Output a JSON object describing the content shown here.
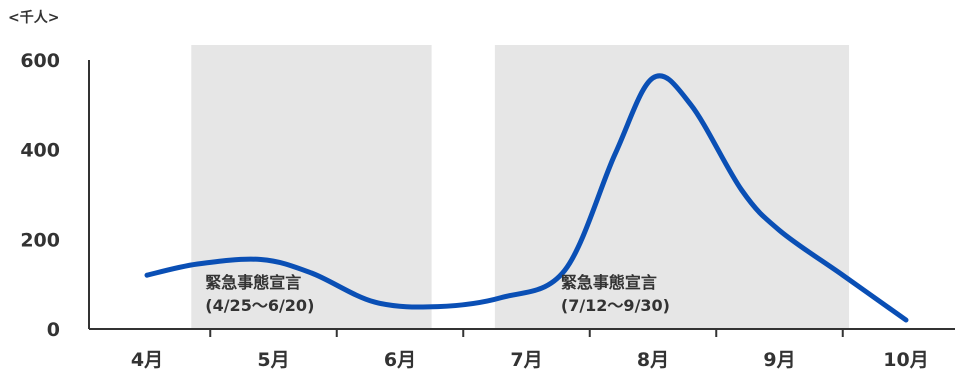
{
  "chart_data": {
    "type": "line",
    "unit_label": "<千人>",
    "ylim": [
      0,
      600
    ],
    "y_ticks": [
      0,
      200,
      400,
      600
    ],
    "categories": [
      "4月",
      "5月",
      "6月",
      "7月",
      "8月",
      "9月",
      "10月"
    ],
    "series": [
      {
        "x": [
          0.0,
          0.4,
          0.9,
          1.3,
          1.8,
          2.3,
          2.8,
          3.3,
          3.7,
          4.0,
          4.3,
          4.7,
          5.0,
          5.5,
          6.0
        ],
        "values": [
          120,
          145,
          155,
          125,
          60,
          50,
          70,
          130,
          390,
          560,
          500,
          310,
          220,
          120,
          20
        ]
      }
    ],
    "shaded_periods": [
      {
        "label": "緊急事態宣言",
        "sublabel": "(4/25〜6/20)",
        "start": 0.35,
        "end": 2.25
      },
      {
        "label": "緊急事態宣言",
        "sublabel": "(7/12〜9/30)",
        "start": 2.75,
        "end": 5.55
      }
    ],
    "colors": {
      "line": "#0a4fb5",
      "shade": "#e6e6e6",
      "axis": "#333333"
    }
  }
}
